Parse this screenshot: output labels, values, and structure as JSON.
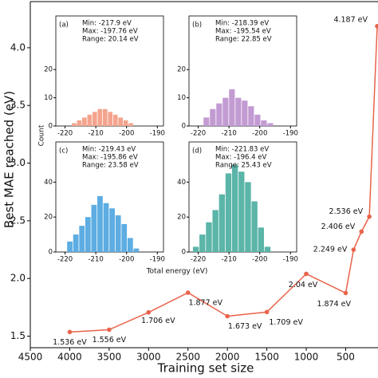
{
  "chart_data": [
    {
      "type": "line",
      "xlabel": "Training set size",
      "ylabel": "Best MAE reached (eV)",
      "color": "#e8634a",
      "x": [
        4000,
        3500,
        3000,
        2500,
        2000,
        1500,
        1000,
        500,
        400,
        300,
        200,
        100
      ],
      "values": [
        1.536,
        1.556,
        1.706,
        1.877,
        1.673,
        1.709,
        2.04,
        1.874,
        2.249,
        2.406,
        2.536,
        4.187
      ],
      "value_labels": [
        "1.536 eV",
        "1.556 eV",
        "1.706 eV",
        "1.877 eV",
        "1.673 eV",
        "1.709 eV",
        "2.04 eV",
        "1.874 eV",
        "2.249 eV",
        "2.406 eV",
        "2.536 eV",
        "4.187 eV"
      ],
      "xlim": [
        4500,
        90
      ],
      "xticks": [
        4500,
        4000,
        3500,
        3000,
        2500,
        2000,
        1500,
        1000,
        500
      ],
      "ylim": [
        1.4,
        4.4
      ],
      "yticks": [
        1.5,
        {
          "value": 2,
          "label": "2.0"
        },
        2.5,
        {
          "value": 3,
          "label": "3.0"
        },
        3.5,
        {
          "value": 4,
          "label": "4.0"
        }
      ]
    },
    {
      "type": "histogram",
      "panel": "(a)",
      "color": "#f4a48e",
      "annotations": [
        "Min: -217.9 eV",
        "Max: -197.76 eV",
        "Range: 20.14 eV"
      ],
      "bins": [
        -217.9,
        -216.22,
        -214.54,
        -212.87,
        -211.19,
        -209.51,
        -207.83,
        -206.15,
        -204.47,
        -202.8,
        -201.12,
        -199.44,
        -197.76
      ],
      "values": [
        1,
        2,
        3,
        4,
        5,
        6,
        6,
        5,
        4,
        3,
        2,
        1
      ],
      "xlim": [
        -223,
        -188
      ],
      "xticks": [
        -220,
        -210,
        -200,
        -190
      ],
      "ylim": [
        0,
        39
      ],
      "yticks": [
        0,
        10,
        20
      ]
    },
    {
      "type": "histogram",
      "panel": "(b)",
      "color": "#c39bd3",
      "annotations": [
        "Min: -218.39 eV",
        "Max: -195.54 eV",
        "Range: 22.85 eV"
      ],
      "bins": [
        -218.39,
        -216.31,
        -214.23,
        -212.16,
        -210.08,
        -208.0,
        -205.93,
        -203.85,
        -201.77,
        -199.7,
        -197.62,
        -195.54
      ],
      "values": [
        3,
        6,
        8,
        10,
        13,
        10,
        9,
        7,
        4,
        2,
        1
      ],
      "xlim": [
        -223,
        -188
      ],
      "xticks": [
        -220,
        -210,
        -200,
        -190
      ],
      "ylim": [
        0,
        39
      ],
      "yticks": [
        0,
        10,
        20
      ]
    },
    {
      "type": "histogram",
      "panel": "(c)",
      "color": "#5dade2",
      "annotations": [
        "Min: -219.43 eV",
        "Max: -195.86 eV",
        "Range: 23.58 eV"
      ],
      "bins": [
        -219.43,
        -217.47,
        -215.5,
        -213.54,
        -211.57,
        -209.61,
        -207.64,
        -205.68,
        -203.71,
        -201.75,
        -199.79,
        -197.82,
        -195.86
      ],
      "values": [
        6,
        10,
        15,
        20,
        27,
        32,
        28,
        25,
        21,
        16,
        8,
        2
      ],
      "xlim": [
        -223,
        -188
      ],
      "xticks": [
        -220,
        -210,
        -200,
        -190
      ],
      "ylim": [
        0,
        63
      ],
      "yticks": [
        0,
        20,
        40
      ]
    },
    {
      "type": "histogram",
      "panel": "(d)",
      "color": "#5bb5a8",
      "annotations": [
        "Min: -221.83 eV",
        "Max: -196.4 eV",
        "Range: 25.43 eV"
      ],
      "bins": [
        -221.83,
        -219.71,
        -217.59,
        -215.47,
        -213.35,
        -211.23,
        -209.12,
        -207.0,
        -204.88,
        -202.76,
        -200.64,
        -198.52,
        -196.4
      ],
      "values": [
        3,
        10,
        17,
        24,
        33,
        45,
        50,
        46,
        40,
        29,
        14,
        3
      ],
      "xlim": [
        -223,
        -188
      ],
      "xticks": [
        -220,
        -210,
        -200,
        -190
      ],
      "ylim": [
        0,
        63
      ],
      "yticks": [
        0,
        20,
        40
      ]
    }
  ],
  "inset_labels": {
    "y": "Count",
    "x": "Total energy (eV)"
  }
}
